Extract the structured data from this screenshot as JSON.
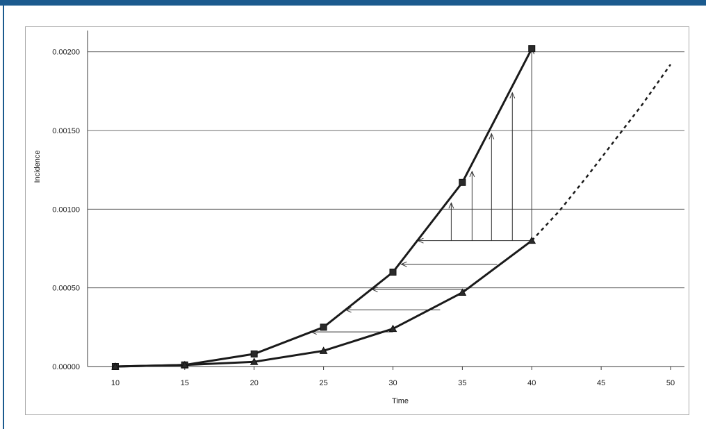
{
  "chart_data": {
    "type": "line",
    "xlabel": "Time",
    "ylabel": "Incidence",
    "xlim": [
      8,
      51
    ],
    "ylim": [
      0,
      0.0021
    ],
    "x_ticks": [
      10,
      15,
      20,
      25,
      30,
      35,
      40,
      45,
      50
    ],
    "y_ticks": [
      "0.00000",
      "0.00050",
      "0.00100",
      "0.00150",
      "0.00200"
    ],
    "grid": "horizontal",
    "legend": "none",
    "series": [
      {
        "marker": "square",
        "style": "solid",
        "points": [
          [
            10,
            0.0
          ],
          [
            15,
            1e-05
          ],
          [
            20,
            8e-05
          ],
          [
            25,
            0.00025
          ],
          [
            30,
            0.0006
          ],
          [
            35,
            0.00117
          ],
          [
            40,
            0.00202
          ]
        ]
      },
      {
        "marker": "triangle",
        "style": "solid",
        "points": [
          [
            10,
            0.0
          ],
          [
            15,
            1e-05
          ],
          [
            20,
            3e-05
          ],
          [
            25,
            0.0001
          ],
          [
            30,
            0.00024
          ],
          [
            35,
            0.00047
          ],
          [
            40,
            0.0008
          ]
        ]
      },
      {
        "marker": "none",
        "style": "dotted",
        "points": [
          [
            40,
            0.0008
          ],
          [
            42,
            0.00099
          ],
          [
            44,
            0.00121
          ],
          [
            46,
            0.00144
          ],
          [
            48,
            0.00167
          ],
          [
            50,
            0.00192
          ]
        ]
      }
    ],
    "horizontal_arrows": [
      {
        "y": 0.00022,
        "from_x": 30.0,
        "to_x": 24.1
      },
      {
        "y": 0.00036,
        "from_x": 33.4,
        "to_x": 26.6
      },
      {
        "y": 0.00049,
        "from_x": 35.3,
        "to_x": 28.5
      },
      {
        "y": 0.00065,
        "from_x": 37.5,
        "to_x": 30.6
      },
      {
        "y": 0.0008,
        "from_x": 40.0,
        "to_x": 31.8
      }
    ],
    "vertical_arrows": [
      {
        "x": 34.2,
        "from_y": 0.0008,
        "to_y": 0.00104
      },
      {
        "x": 35.7,
        "from_y": 0.0008,
        "to_y": 0.00124
      },
      {
        "x": 37.1,
        "from_y": 0.0008,
        "to_y": 0.00148
      },
      {
        "x": 38.6,
        "from_y": 0.0008,
        "to_y": 0.00174
      },
      {
        "x": 40.0,
        "from_y": 0.0008,
        "to_y": 0.00202
      }
    ],
    "colors": {
      "lines": "#1a1a1a",
      "grid": "#3a3a3a",
      "arrows": "#333333",
      "top_bar": "#1b5a8e"
    }
  }
}
